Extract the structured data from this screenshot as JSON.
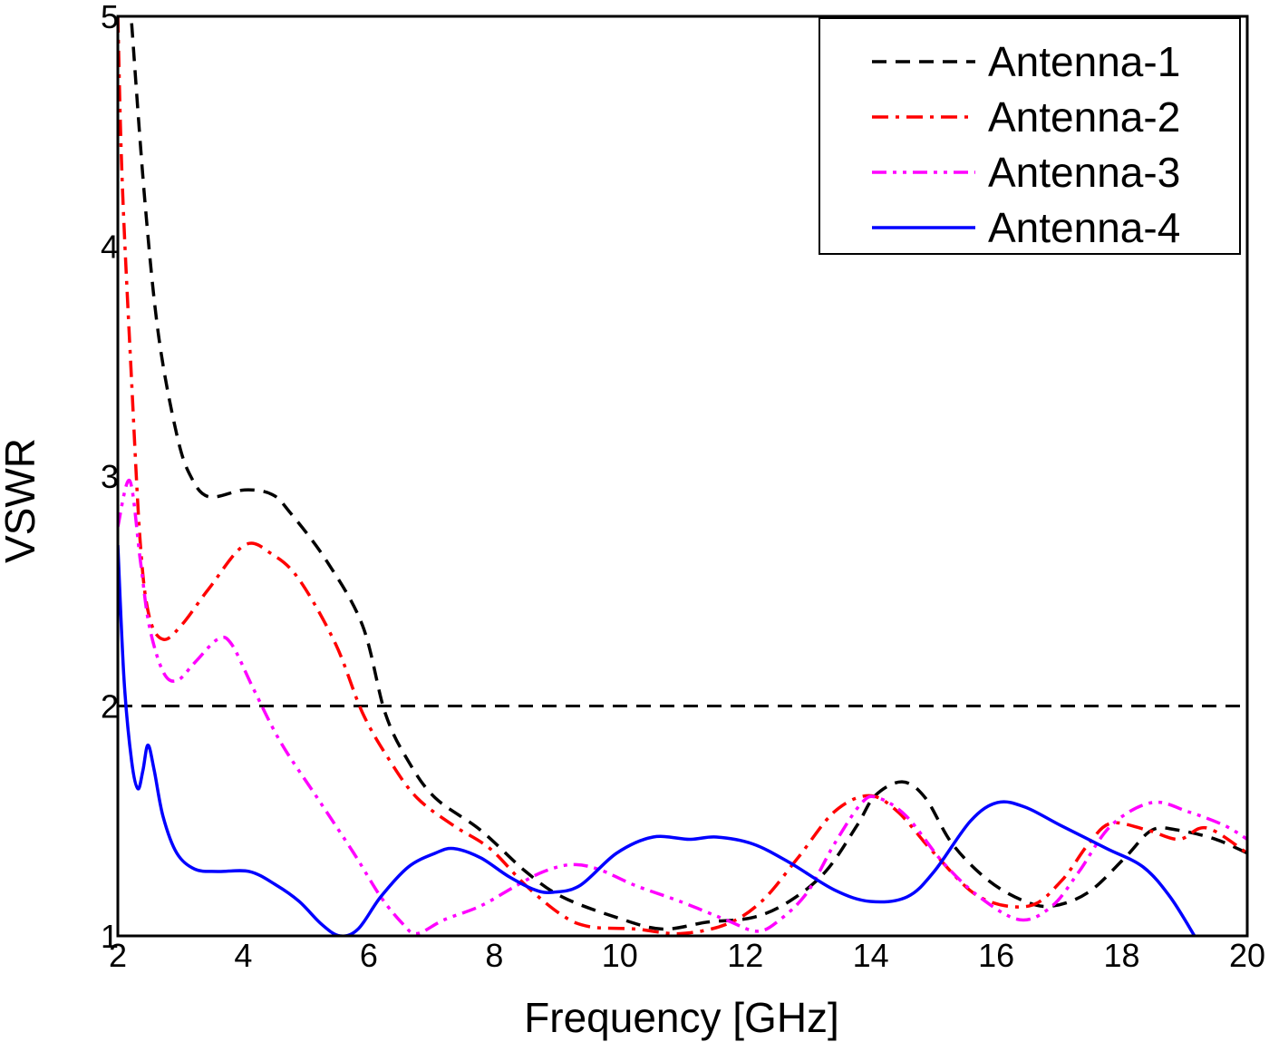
{
  "chart_data": {
    "type": "line",
    "title": "",
    "xlabel": "Frequency [GHz]",
    "ylabel": "VSWR",
    "xlim": [
      2,
      20
    ],
    "ylim": [
      1,
      5
    ],
    "xticks": [
      2,
      4,
      6,
      8,
      10,
      12,
      14,
      16,
      18,
      20
    ],
    "yticks": [
      1,
      2,
      3,
      4,
      5
    ],
    "grid": false,
    "legend_position": "top-right",
    "reference_line": {
      "y": 2,
      "color": "#000000",
      "style": "dashed"
    },
    "series": [
      {
        "name": "Antenna-1",
        "color": "#000000",
        "style": "dashed",
        "x": [
          2.22,
          2.43,
          2.65,
          2.94,
          3.16,
          3.45,
          4.02,
          4.46,
          4.75,
          5.33,
          5.9,
          6.26,
          6.63,
          7.06,
          7.78,
          8.5,
          9.08,
          9.95,
          10.67,
          11.4,
          12.12,
          12.7,
          13.28,
          13.78,
          14.07,
          14.5,
          14.87,
          15.3,
          15.88,
          16.46,
          16.9,
          17.47,
          18.05,
          18.48,
          18.9,
          19.5,
          20
        ],
        "y": [
          4.97,
          4.2,
          3.61,
          3.18,
          3.0,
          2.91,
          2.94,
          2.92,
          2.84,
          2.63,
          2.35,
          1.97,
          1.76,
          1.6,
          1.46,
          1.28,
          1.17,
          1.08,
          1.03,
          1.06,
          1.08,
          1.15,
          1.28,
          1.48,
          1.61,
          1.67,
          1.6,
          1.4,
          1.24,
          1.15,
          1.13,
          1.19,
          1.34,
          1.46,
          1.46,
          1.42,
          1.36
        ]
      },
      {
        "name": "Antenna-2",
        "color": "#ff0000",
        "style": "dashdot",
        "x": [
          2.0,
          2.07,
          2.22,
          2.36,
          2.5,
          2.72,
          3.01,
          3.45,
          4.02,
          4.46,
          4.89,
          5.47,
          5.9,
          6.34,
          6.77,
          7.35,
          7.93,
          8.5,
          9.08,
          9.52,
          10.24,
          10.96,
          11.69,
          12.26,
          12.84,
          13.42,
          13.97,
          14.43,
          15.01,
          15.73,
          16.52,
          17.04,
          17.47,
          17.83,
          18.41,
          18.91,
          19.35,
          20
        ],
        "y": [
          5.0,
          4.28,
          3.41,
          2.7,
          2.39,
          2.29,
          2.35,
          2.51,
          2.7,
          2.66,
          2.55,
          2.27,
          1.97,
          1.76,
          1.6,
          1.48,
          1.38,
          1.22,
          1.09,
          1.04,
          1.03,
          1.01,
          1.05,
          1.15,
          1.34,
          1.54,
          1.61,
          1.54,
          1.36,
          1.17,
          1.13,
          1.24,
          1.4,
          1.49,
          1.46,
          1.42,
          1.47,
          1.36
        ]
      },
      {
        "name": "Antenna-3",
        "color": "#ff00ff",
        "style": "dashdotdot",
        "x": [
          2.0,
          2.19,
          2.36,
          2.5,
          2.72,
          2.94,
          3.23,
          3.59,
          3.81,
          4.17,
          4.6,
          5.18,
          5.76,
          6.19,
          6.55,
          6.77,
          7.2,
          7.78,
          8.36,
          8.79,
          9.23,
          9.66,
          10.24,
          10.96,
          11.69,
          12.19,
          12.55,
          12.99,
          13.42,
          13.86,
          14.12,
          14.57,
          15.15,
          15.73,
          16.38,
          16.89,
          17.32,
          17.83,
          18.48,
          19.06,
          19.64,
          20
        ],
        "y": [
          2.78,
          2.98,
          2.63,
          2.35,
          2.15,
          2.11,
          2.19,
          2.29,
          2.27,
          2.07,
          1.84,
          1.6,
          1.36,
          1.17,
          1.05,
          1.01,
          1.07,
          1.13,
          1.22,
          1.28,
          1.31,
          1.29,
          1.22,
          1.15,
          1.07,
          1.02,
          1.07,
          1.19,
          1.4,
          1.58,
          1.6,
          1.52,
          1.32,
          1.17,
          1.07,
          1.13,
          1.28,
          1.48,
          1.58,
          1.54,
          1.48,
          1.42
        ]
      },
      {
        "name": "Antenna-4",
        "color": "#0000ff",
        "style": "solid",
        "x": [
          2.0,
          2.1,
          2.22,
          2.32,
          2.4,
          2.48,
          2.58,
          2.72,
          2.94,
          3.23,
          3.59,
          4.1,
          4.53,
          4.89,
          5.25,
          5.54,
          5.83,
          6.19,
          6.63,
          7.06,
          7.35,
          7.78,
          8.22,
          8.65,
          8.94,
          9.37,
          9.95,
          10.53,
          11.11,
          11.54,
          12.12,
          12.7,
          13.42,
          13.99,
          14.58,
          15.01,
          15.59,
          16.02,
          16.46,
          17.03,
          17.76,
          18.34,
          18.77,
          19.16
        ],
        "y": [
          2.7,
          2.11,
          1.76,
          1.64,
          1.72,
          1.83,
          1.72,
          1.52,
          1.36,
          1.29,
          1.28,
          1.28,
          1.22,
          1.15,
          1.05,
          1.0,
          1.03,
          1.17,
          1.3,
          1.36,
          1.38,
          1.34,
          1.26,
          1.2,
          1.19,
          1.22,
          1.36,
          1.43,
          1.42,
          1.43,
          1.4,
          1.32,
          1.2,
          1.15,
          1.17,
          1.28,
          1.5,
          1.58,
          1.56,
          1.48,
          1.38,
          1.3,
          1.17,
          1.0
        ]
      }
    ]
  }
}
